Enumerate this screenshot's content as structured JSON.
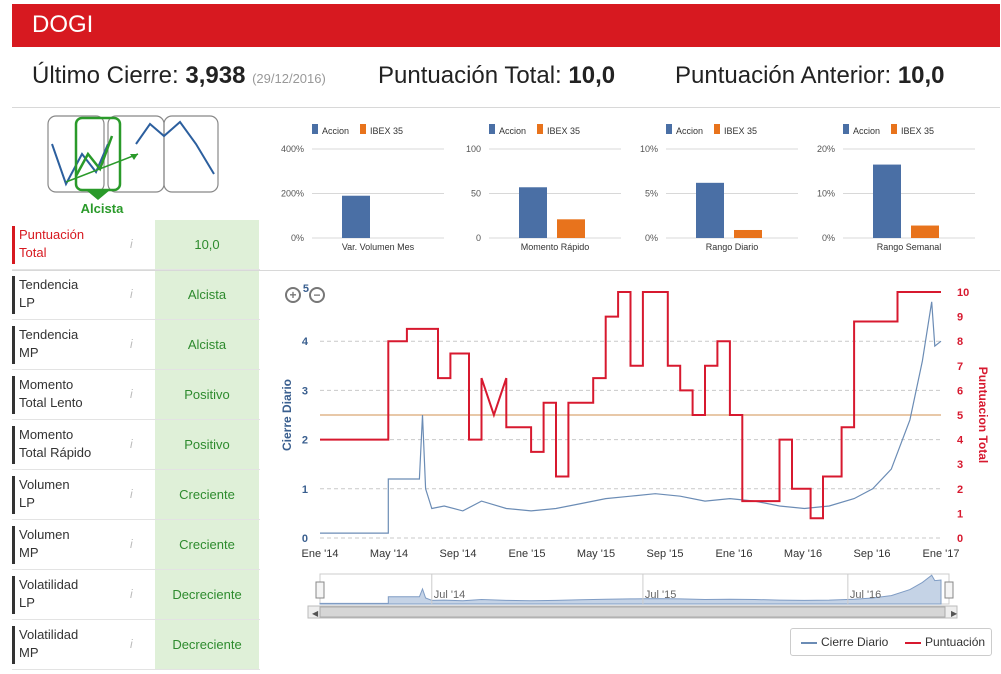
{
  "header": {
    "title": "DOGI"
  },
  "summary": {
    "last_close_label": "Último Cierre:",
    "last_close_value": "3,938",
    "last_close_date": "(29/12/2016)",
    "total_score_label": "Puntuación Total:",
    "total_score_value": "10,0",
    "prev_score_label": "Puntuación Anterior:",
    "prev_score_value": "10,0"
  },
  "trend_icon": {
    "label": "Alcista"
  },
  "metrics": [
    {
      "label_line1": "Puntuación",
      "label_line2": "Total",
      "value": "10,0"
    },
    {
      "label_line1": "Tendencia",
      "label_line2": "LP",
      "value": "Alcista"
    },
    {
      "label_line1": "Tendencia",
      "label_line2": "MP",
      "value": "Alcista"
    },
    {
      "label_line1": "Momento",
      "label_line2": "Total Lento",
      "value": "Positivo"
    },
    {
      "label_line1": "Momento",
      "label_line2": "Total Rápido",
      "value": "Positivo"
    },
    {
      "label_line1": "Volumen",
      "label_line2": "LP",
      "value": "Creciente"
    },
    {
      "label_line1": "Volumen",
      "label_line2": "MP",
      "value": "Creciente"
    },
    {
      "label_line1": "Volatilidad",
      "label_line2": "LP",
      "value": "Decreciente"
    },
    {
      "label_line1": "Volatilidad",
      "label_line2": "MP",
      "value": "Decreciente"
    }
  ],
  "info_glyph": "i",
  "colors": {
    "accent": "#d71920",
    "accion": "#4a6fa5",
    "ibex": "#e8731c",
    "green_bg": "#dff0d8",
    "green_text": "#2e8b2e",
    "line_blue": "#6b8cb5",
    "line_red": "#d7192f",
    "ref_line": "#e8c8a8"
  },
  "chart_data": [
    {
      "type": "bar",
      "legend": [
        "Accion",
        "IBEX 35"
      ],
      "categories": [
        "Var. Volumen Mes"
      ],
      "series": [
        {
          "name": "Accion",
          "values": [
            190
          ]
        },
        {
          "name": "IBEX 35",
          "values": [
            0
          ]
        }
      ],
      "yticks": [
        "400%",
        "200%",
        "0%"
      ],
      "ylim": [
        0,
        400
      ]
    },
    {
      "type": "bar",
      "legend": [
        "Accion",
        "IBEX 35"
      ],
      "categories": [
        "Momento Rápido"
      ],
      "series": [
        {
          "name": "Accion",
          "values": [
            57
          ]
        },
        {
          "name": "IBEX 35",
          "values": [
            21
          ]
        }
      ],
      "yticks": [
        "100",
        "50",
        "0"
      ],
      "ylim": [
        0,
        100
      ]
    },
    {
      "type": "bar",
      "legend": [
        "Accion",
        "IBEX 35"
      ],
      "categories": [
        "Rango Diario"
      ],
      "series": [
        {
          "name": "Accion",
          "values": [
            6.2
          ]
        },
        {
          "name": "IBEX 35",
          "values": [
            0.9
          ]
        }
      ],
      "yticks": [
        "10%",
        "5%",
        "0%"
      ],
      "ylim": [
        0,
        10
      ]
    },
    {
      "type": "bar",
      "legend": [
        "Accion",
        "IBEX 35"
      ],
      "categories": [
        "Rango Semanal"
      ],
      "series": [
        {
          "name": "Accion",
          "values": [
            16.5
          ]
        },
        {
          "name": "IBEX 35",
          "values": [
            2.8
          ]
        }
      ],
      "yticks": [
        "20%",
        "10%",
        "0%"
      ],
      "ylim": [
        0,
        20
      ]
    },
    {
      "type": "line",
      "ylabel_left": "Cierre Diario",
      "ylabel_right": "Puntuacion Total",
      "yticks_left": [
        "4",
        "3",
        "2",
        "1",
        "0"
      ],
      "ylim_left": [
        0,
        5
      ],
      "yticks_right": [
        "10",
        "9",
        "8",
        "7",
        "6",
        "5",
        "4",
        "3",
        "2",
        "1",
        "0"
      ],
      "ylim_right": [
        0,
        10
      ],
      "xlabels": [
        "Ene '14",
        "May '14",
        "Sep '14",
        "Ene '15",
        "May '15",
        "Sep '15",
        "Ene '16",
        "May '16",
        "Sep '16",
        "Ene '17"
      ],
      "reference_value_right": 5,
      "navigator_labels": [
        "Jul '14",
        "Jul '15",
        "Jul '16"
      ],
      "legend": [
        "Cierre Diario",
        "Puntuación"
      ],
      "series": [
        {
          "name": "Cierre Diario",
          "points": [
            [
              0,
              0.1
            ],
            [
              0.11,
              0.1
            ],
            [
              0.11,
              1.2
            ],
            [
              0.16,
              1.2
            ],
            [
              0.165,
              2.5
            ],
            [
              0.17,
              1.0
            ],
            [
              0.18,
              0.6
            ],
            [
              0.2,
              0.65
            ],
            [
              0.23,
              0.55
            ],
            [
              0.26,
              0.75
            ],
            [
              0.3,
              0.6
            ],
            [
              0.34,
              0.55
            ],
            [
              0.38,
              0.6
            ],
            [
              0.42,
              0.7
            ],
            [
              0.46,
              0.8
            ],
            [
              0.5,
              0.85
            ],
            [
              0.54,
              0.9
            ],
            [
              0.58,
              0.85
            ],
            [
              0.62,
              0.75
            ],
            [
              0.66,
              0.8
            ],
            [
              0.7,
              0.75
            ],
            [
              0.74,
              0.65
            ],
            [
              0.78,
              0.6
            ],
            [
              0.82,
              0.65
            ],
            [
              0.86,
              0.8
            ],
            [
              0.89,
              1.0
            ],
            [
              0.92,
              1.4
            ],
            [
              0.95,
              2.4
            ],
            [
              0.97,
              3.6
            ],
            [
              0.985,
              4.8
            ],
            [
              0.99,
              3.9
            ],
            [
              1,
              4.0
            ]
          ]
        },
        {
          "name": "Puntuación",
          "steps": [
            [
              0,
              4
            ],
            [
              0.11,
              4
            ],
            [
              0.11,
              8
            ],
            [
              0.14,
              8
            ],
            [
              0.14,
              8.5
            ],
            [
              0.19,
              8.5
            ],
            [
              0.19,
              6.5
            ],
            [
              0.21,
              6.5
            ],
            [
              0.21,
              7.5
            ],
            [
              0.24,
              7.5
            ],
            [
              0.24,
              4
            ],
            [
              0.26,
              4
            ],
            [
              0.26,
              6.5
            ],
            [
              0.28,
              5
            ],
            [
              0.3,
              6.5
            ],
            [
              0.3,
              4.5
            ],
            [
              0.34,
              4.5
            ],
            [
              0.34,
              3.5
            ],
            [
              0.36,
              3.5
            ],
            [
              0.36,
              5.5
            ],
            [
              0.38,
              5.5
            ],
            [
              0.38,
              2.5
            ],
            [
              0.4,
              2.5
            ],
            [
              0.4,
              5.5
            ],
            [
              0.44,
              5.5
            ],
            [
              0.44,
              6.5
            ],
            [
              0.46,
              6.5
            ],
            [
              0.46,
              9
            ],
            [
              0.48,
              9
            ],
            [
              0.48,
              10
            ],
            [
              0.5,
              10
            ],
            [
              0.5,
              7
            ],
            [
              0.52,
              7
            ],
            [
              0.52,
              10
            ],
            [
              0.56,
              10
            ],
            [
              0.56,
              7
            ],
            [
              0.58,
              7
            ],
            [
              0.58,
              6
            ],
            [
              0.6,
              6
            ],
            [
              0.6,
              5
            ],
            [
              0.62,
              5
            ],
            [
              0.62,
              7
            ],
            [
              0.64,
              7
            ],
            [
              0.64,
              8
            ],
            [
              0.66,
              8
            ],
            [
              0.66,
              5
            ],
            [
              0.68,
              5
            ],
            [
              0.68,
              1.5
            ],
            [
              0.74,
              1.5
            ],
            [
              0.74,
              4
            ],
            [
              0.76,
              4
            ],
            [
              0.76,
              2
            ],
            [
              0.79,
              2
            ],
            [
              0.79,
              0.8
            ],
            [
              0.81,
              0.8
            ],
            [
              0.81,
              2.5
            ],
            [
              0.84,
              2.5
            ],
            [
              0.84,
              4.5
            ],
            [
              0.86,
              4.5
            ],
            [
              0.86,
              8.8
            ],
            [
              0.93,
              8.8
            ],
            [
              0.93,
              10
            ],
            [
              1,
              10
            ]
          ]
        }
      ]
    }
  ]
}
